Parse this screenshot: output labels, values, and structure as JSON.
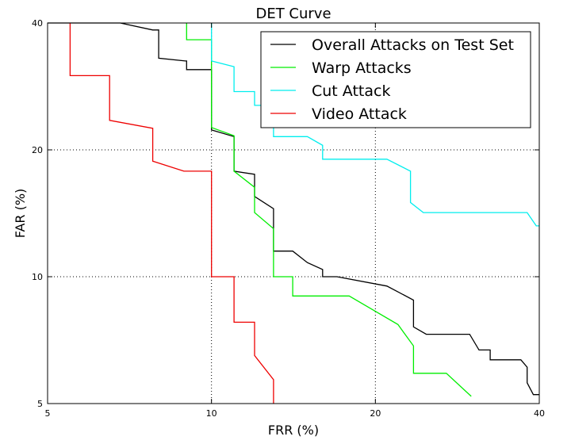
{
  "chart_data": {
    "type": "line",
    "title": "DET Curve",
    "xlabel": "FRR (%)",
    "ylabel": "FAR (%)",
    "xscale": "log",
    "yscale": "log",
    "xlim": [
      5,
      40
    ],
    "ylim": [
      5,
      40
    ],
    "xticks": [
      5,
      10,
      20,
      40
    ],
    "yticks": [
      5,
      10,
      20,
      40
    ],
    "xtick_labels": [
      "5",
      "10",
      "20",
      "40"
    ],
    "ytick_labels": [
      "5",
      "10",
      "20",
      "40"
    ],
    "grid": "dotted at 10 and 20",
    "legend_position": "top-right",
    "series": [
      {
        "name": "Overall Attacks on Test Set",
        "color": "#000000",
        "points": [
          [
            5.0,
            40
          ],
          [
            6.8,
            40
          ],
          [
            7.8,
            38.5
          ],
          [
            8.0,
            38.5
          ],
          [
            8.0,
            33
          ],
          [
            8.95,
            32.5
          ],
          [
            9.0,
            32.5
          ],
          [
            9.0,
            31
          ],
          [
            10.0,
            31
          ],
          [
            10.0,
            22.3
          ],
          [
            11.0,
            21.5
          ],
          [
            11.0,
            17.8
          ],
          [
            12.0,
            17.5
          ],
          [
            12.0,
            15.5
          ],
          [
            13.0,
            14.5
          ],
          [
            13.0,
            11.5
          ],
          [
            14.1,
            11.5
          ],
          [
            15.0,
            10.8
          ],
          [
            16.0,
            10.4
          ],
          [
            16.0,
            10.0
          ],
          [
            17.0,
            10.0
          ],
          [
            21.0,
            9.5
          ],
          [
            23.5,
            8.8
          ],
          [
            23.5,
            7.6
          ],
          [
            24.8,
            7.3
          ],
          [
            29.8,
            7.3
          ],
          [
            31.0,
            6.7
          ],
          [
            32.5,
            6.7
          ],
          [
            32.5,
            6.35
          ],
          [
            37.0,
            6.35
          ],
          [
            38.0,
            6.1
          ],
          [
            38.0,
            5.6
          ],
          [
            39.0,
            5.25
          ],
          [
            40.0,
            5.25
          ]
        ]
      },
      {
        "name": "Warp Attacks",
        "color": "#00ee00",
        "points": [
          [
            9.0,
            40
          ],
          [
            9.0,
            36.5
          ],
          [
            10.0,
            36.5
          ],
          [
            10.0,
            22.6
          ],
          [
            11.0,
            21.6
          ],
          [
            11.0,
            17.8
          ],
          [
            12.0,
            16.3
          ],
          [
            12.0,
            14.2
          ],
          [
            13.0,
            13.0
          ],
          [
            13.0,
            10.0
          ],
          [
            14.1,
            10.0
          ],
          [
            14.1,
            9.0
          ],
          [
            17.9,
            9.0
          ],
          [
            22.0,
            7.7
          ],
          [
            23.5,
            6.85
          ],
          [
            23.5,
            5.9
          ],
          [
            27.0,
            5.9
          ],
          [
            30.0,
            5.2
          ]
        ]
      },
      {
        "name": "Cut Attack",
        "color": "#00eeee",
        "points": [
          [
            10.0,
            40
          ],
          [
            10.0,
            32.5
          ],
          [
            11.0,
            31.5
          ],
          [
            11.0,
            27.5
          ],
          [
            12.0,
            27.5
          ],
          [
            12.0,
            25.5
          ],
          [
            13.0,
            25.5
          ],
          [
            13.0,
            21.5
          ],
          [
            15.0,
            21.5
          ],
          [
            16.0,
            20.5
          ],
          [
            16.0,
            19.0
          ],
          [
            21.0,
            19.0
          ],
          [
            23.2,
            17.8
          ],
          [
            23.2,
            15.0
          ],
          [
            24.5,
            14.2
          ],
          [
            38.0,
            14.2
          ],
          [
            39.5,
            13.2
          ],
          [
            40.0,
            13.2
          ]
        ]
      },
      {
        "name": "Video Attack",
        "color": "#ee0000",
        "points": [
          [
            5.5,
            40
          ],
          [
            5.5,
            30
          ],
          [
            6.5,
            30
          ],
          [
            6.5,
            23.5
          ],
          [
            7.8,
            22.5
          ],
          [
            7.8,
            18.8
          ],
          [
            8.9,
            17.8
          ],
          [
            10.0,
            17.8
          ],
          [
            10.0,
            10.0
          ],
          [
            11.0,
            10.0
          ],
          [
            11.0,
            7.8
          ],
          [
            12.0,
            7.8
          ],
          [
            12.0,
            6.5
          ],
          [
            13.0,
            5.7
          ],
          [
            13.0,
            5.0
          ]
        ]
      }
    ]
  }
}
